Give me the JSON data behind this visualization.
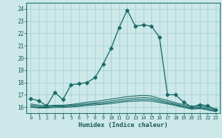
{
  "title": "",
  "xlabel": "Humidex (Indice chaleur)",
  "bg_color": "#cce8e8",
  "grid_color": "#aacfcf",
  "line_color": "#1a6b6b",
  "xlim": [
    -0.5,
    23.5
  ],
  "ylim": [
    15.5,
    24.5
  ],
  "yticks": [
    16,
    17,
    18,
    19,
    20,
    21,
    22,
    23,
    24
  ],
  "xticks": [
    0,
    1,
    2,
    3,
    4,
    5,
    6,
    7,
    8,
    9,
    10,
    11,
    12,
    13,
    14,
    15,
    16,
    17,
    18,
    19,
    20,
    21,
    22,
    23
  ],
  "series": [
    {
      "x": [
        0,
        1,
        2,
        3,
        4,
        5,
        6,
        7,
        8,
        9,
        10,
        11,
        12,
        13,
        14,
        15,
        16,
        17,
        18,
        19,
        20,
        21,
        22,
        23
      ],
      "y": [
        16.7,
        16.5,
        16.1,
        17.2,
        16.6,
        17.8,
        17.9,
        18.0,
        18.4,
        19.5,
        20.8,
        22.5,
        23.9,
        22.6,
        22.7,
        22.6,
        21.7,
        17.0,
        17.0,
        16.4,
        16.0,
        16.2,
        16.1,
        15.8
      ],
      "marker": "D",
      "markersize": 2.5,
      "linewidth": 1.0
    },
    {
      "x": [
        0,
        1,
        2,
        3,
        4,
        5,
        6,
        7,
        8,
        9,
        10,
        11,
        12,
        13,
        14,
        15,
        16,
        17,
        18,
        19,
        20,
        21,
        22,
        23
      ],
      "y": [
        16.25,
        16.15,
        16.1,
        16.15,
        16.15,
        16.2,
        16.3,
        16.4,
        16.45,
        16.55,
        16.65,
        16.75,
        16.85,
        16.9,
        16.95,
        16.9,
        16.7,
        16.55,
        16.35,
        16.2,
        16.05,
        16.1,
        16.0,
        15.85
      ],
      "marker": null,
      "markersize": 0,
      "linewidth": 0.8
    },
    {
      "x": [
        0,
        1,
        2,
        3,
        4,
        5,
        6,
        7,
        8,
        9,
        10,
        11,
        12,
        13,
        14,
        15,
        16,
        17,
        18,
        19,
        20,
        21,
        22,
        23
      ],
      "y": [
        16.15,
        16.05,
        16.05,
        16.1,
        16.1,
        16.15,
        16.2,
        16.28,
        16.33,
        16.4,
        16.5,
        16.6,
        16.68,
        16.73,
        16.78,
        16.73,
        16.58,
        16.42,
        16.25,
        16.1,
        15.95,
        16.0,
        15.9,
        15.75
      ],
      "marker": null,
      "markersize": 0,
      "linewidth": 0.8
    },
    {
      "x": [
        0,
        1,
        2,
        3,
        4,
        5,
        6,
        7,
        8,
        9,
        10,
        11,
        12,
        13,
        14,
        15,
        16,
        17,
        18,
        19,
        20,
        21,
        22,
        23
      ],
      "y": [
        16.05,
        15.98,
        15.98,
        16.02,
        16.03,
        16.07,
        16.12,
        16.2,
        16.25,
        16.3,
        16.38,
        16.47,
        16.55,
        16.6,
        16.63,
        16.6,
        16.47,
        16.33,
        16.18,
        16.03,
        15.88,
        15.93,
        15.82,
        15.68
      ],
      "marker": null,
      "markersize": 0,
      "linewidth": 0.8
    },
    {
      "x": [
        0,
        1,
        2,
        3,
        4,
        5,
        6,
        7,
        8,
        9,
        10,
        11,
        12,
        13,
        14,
        15,
        16,
        17,
        18,
        19,
        20,
        21,
        22,
        23
      ],
      "y": [
        15.98,
        15.92,
        15.92,
        15.96,
        15.97,
        16.0,
        16.05,
        16.12,
        16.17,
        16.22,
        16.28,
        16.37,
        16.44,
        16.48,
        16.51,
        16.48,
        16.37,
        16.25,
        16.12,
        15.97,
        15.82,
        15.87,
        15.76,
        15.62
      ],
      "marker": null,
      "markersize": 0,
      "linewidth": 0.8
    }
  ]
}
